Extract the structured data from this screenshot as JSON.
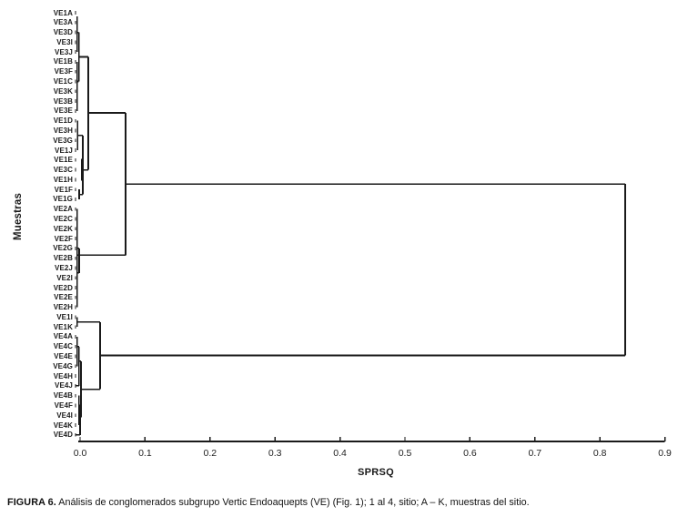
{
  "figure": {
    "caption_label": "FIGURA 6.",
    "caption_text": " Análisis de conglomerados subgrupo Vertic Endoaquepts (VE) (Fig. 1); 1 al 4, sitio; A – K, muestras del sitio."
  },
  "chart_data": {
    "type": "dendrogram",
    "orientation": "horizontal",
    "title": "",
    "xlabel": "SPRSQ",
    "ylabel": "Muestras",
    "xlim": [
      0.0,
      0.9
    ],
    "xticks": [
      0.0,
      0.1,
      0.2,
      0.3,
      0.4,
      0.5,
      0.6,
      0.7,
      0.8,
      0.9
    ],
    "grid": false,
    "line_color": "#1a1a1a",
    "leaves": [
      "VE1A",
      "VE3A",
      "VE3D",
      "VE3I",
      "VE3J",
      "VE1B",
      "VE3F",
      "VE1C",
      "VE3K",
      "VE3B",
      "VE3E",
      "VE1D",
      "VE3H",
      "VE3G",
      "VE1J",
      "VE1E",
      "VE3C",
      "VE1H",
      "VE1F",
      "VE1G",
      "VE2A",
      "VE2C",
      "VE2K",
      "VE2F",
      "VE2G",
      "VE2B",
      "VE2J",
      "VE2I",
      "VE2D",
      "VE2E",
      "VE2H",
      "VE1I",
      "VE1K",
      "VE4A",
      "VE4C",
      "VE4E",
      "VE4G",
      "VE4H",
      "VE4J",
      "VE4B",
      "VE4F",
      "VE4I",
      "VE4K",
      "VE4D"
    ],
    "key_joins": {
      "root_sprsq": 0.84,
      "upper_cluster_join_sprsq": 0.07,
      "upper_subjoin_sprsq": 0.013,
      "lower_cluster_join_sprsq": 0.031
    },
    "segments": [
      [
        -0.0045,
        1.35,
        -0.0045,
        5.0
      ],
      [
        -0.0045,
        6.0,
        -0.0045,
        11.0
      ],
      [
        -0.002,
        3.0,
        -0.002,
        8.0
      ],
      [
        -0.0045,
        3.0,
        -0.002,
        3.0
      ],
      [
        -0.0045,
        8.0,
        -0.002,
        8.0
      ],
      [
        -0.002,
        5.5,
        0.0126,
        5.5
      ],
      [
        -0.004,
        12.0,
        -0.004,
        15.0
      ],
      [
        0.0028,
        15.9,
        0.0028,
        18.1
      ],
      [
        -0.0014,
        19.0,
        -0.0014,
        20.0
      ],
      [
        0.0042,
        13.5,
        0.0042,
        19.5
      ],
      [
        -0.004,
        13.5,
        0.0042,
        13.5
      ],
      [
        0.0028,
        17.0,
        0.0042,
        17.0
      ],
      [
        -0.0014,
        19.5,
        0.0042,
        19.5
      ],
      [
        0.0042,
        17.0,
        0.0126,
        17.0
      ],
      [
        0.0126,
        5.5,
        0.0126,
        17.0
      ],
      [
        0.0126,
        11.2,
        0.07,
        11.2
      ],
      [
        -0.0045,
        21.0,
        -0.0045,
        31.0
      ],
      [
        -0.0014,
        25.0,
        -0.0014,
        27.5
      ],
      [
        -0.0045,
        25.0,
        -0.0014,
        25.0
      ],
      [
        -0.0045,
        27.5,
        -0.0014,
        27.5
      ],
      [
        -0.0045,
        25.7,
        0.07,
        25.7
      ],
      [
        0.07,
        11.2,
        0.07,
        25.7
      ],
      [
        0.07,
        18.45,
        0.839,
        18.45
      ],
      [
        -0.0045,
        32.0,
        -0.0045,
        33.0
      ],
      [
        -0.0045,
        32.5,
        0.0308,
        32.5
      ],
      [
        -0.0045,
        34.0,
        -0.0045,
        37.0
      ],
      [
        -0.0015,
        35.0,
        -0.0015,
        39.0
      ],
      [
        -0.0045,
        35.0,
        -0.0015,
        35.0
      ],
      [
        -0.007,
        39.0,
        -0.0015,
        39.0
      ],
      [
        -0.0015,
        36.5,
        0.0014,
        36.5
      ],
      [
        -0.0015,
        40.0,
        -0.0015,
        43.0
      ],
      [
        0.0,
        41.0,
        0.0,
        44.0
      ],
      [
        -0.0015,
        41.0,
        0.0,
        41.0
      ],
      [
        -0.007,
        44.0,
        0.0,
        44.0
      ],
      [
        0.0,
        42.2,
        0.0014,
        42.2
      ],
      [
        0.0014,
        36.5,
        0.0014,
        42.2
      ],
      [
        0.0014,
        39.35,
        0.0308,
        39.35
      ],
      [
        0.0308,
        32.5,
        0.0308,
        39.35
      ],
      [
        0.0308,
        35.9,
        0.839,
        35.9
      ],
      [
        0.839,
        18.45,
        0.839,
        35.9
      ]
    ]
  }
}
